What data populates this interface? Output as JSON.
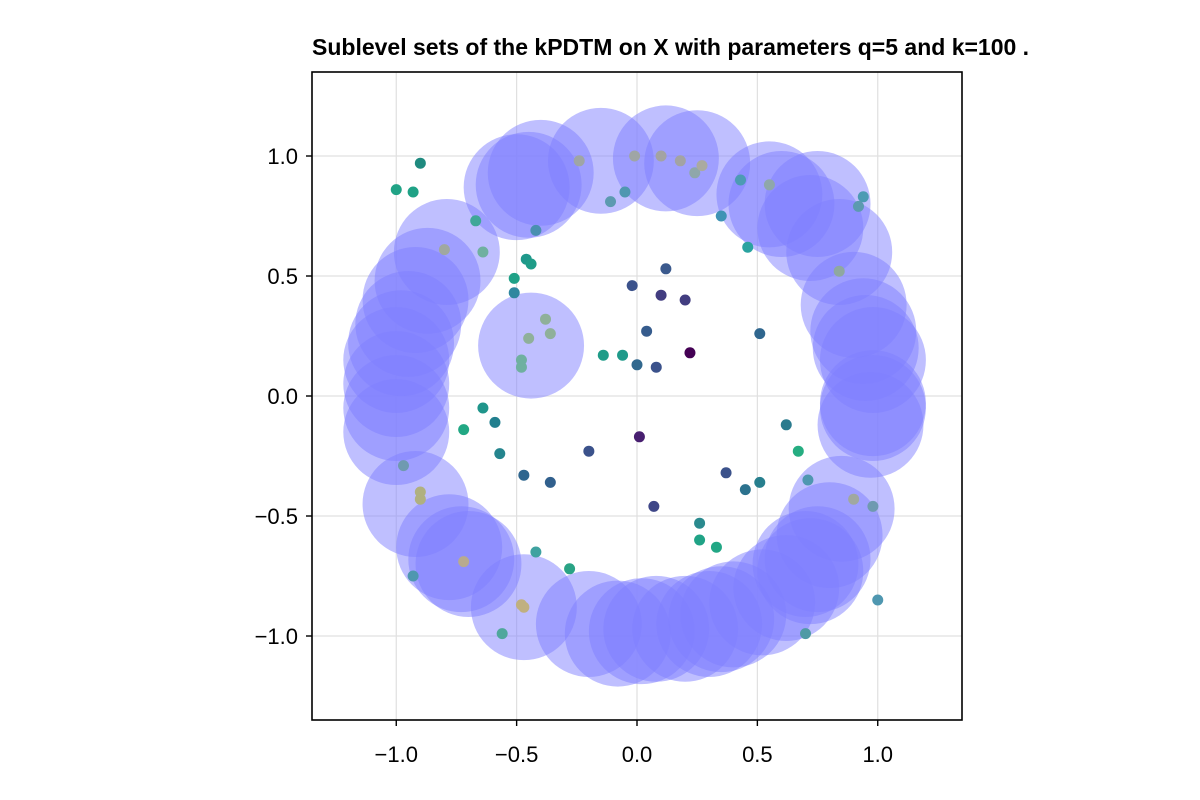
{
  "chart_data": {
    "type": "scatter",
    "title": "Sublevel sets of the kPDTM on X with parameters q=5 and k=100 .",
    "xlabel": "",
    "ylabel": "",
    "xlim": [
      -1.35,
      1.35
    ],
    "ylim": [
      -1.35,
      1.35
    ],
    "xticks": [
      {
        "v": -1.0,
        "label": "−1.0"
      },
      {
        "v": -0.5,
        "label": "−0.5"
      },
      {
        "v": 0.0,
        "label": "0.0"
      },
      {
        "v": 0.5,
        "label": "0.5"
      },
      {
        "v": 1.0,
        "label": "1.0"
      }
    ],
    "yticks": [
      {
        "v": 1.0,
        "label": "1.0"
      },
      {
        "v": 0.5,
        "label": "0.5"
      },
      {
        "v": 0.0,
        "label": "0.0"
      },
      {
        "v": -0.5,
        "label": "−0.5"
      },
      {
        "v": -1.0,
        "label": "−1.0"
      }
    ],
    "grid": true,
    "legend": "none",
    "colors": {
      "ball_fill": "#8080ff",
      "ball_opacity": 0.5
    },
    "ball_radius": 0.22,
    "balls": [
      {
        "x": 0.3,
        "y": -0.95
      },
      {
        "x": -0.2,
        "y": -0.95
      },
      {
        "x": 0.08,
        "y": -0.97
      },
      {
        "x": 0.02,
        "y": -0.98
      },
      {
        "x": 0.75,
        "y": 0.8
      },
      {
        "x": 0.84,
        "y": 0.6
      },
      {
        "x": 0.94,
        "y": 0.27
      },
      {
        "x": -0.45,
        "y": 0.88
      },
      {
        "x": 0.97,
        "y": -0.12
      },
      {
        "x": 0.7,
        "y": -0.7
      },
      {
        "x": -0.7,
        "y": -0.7
      },
      {
        "x": 0.35,
        "y": -0.93
      },
      {
        "x": -0.44,
        "y": 0.21
      },
      {
        "x": -1.0,
        "y": 0.15
      },
      {
        "x": -0.95,
        "y": 0.3
      },
      {
        "x": -0.79,
        "y": 0.6
      },
      {
        "x": -0.15,
        "y": 0.98
      },
      {
        "x": 0.12,
        "y": 0.99
      },
      {
        "x": 0.25,
        "y": 0.97
      },
      {
        "x": -0.4,
        "y": 0.93
      },
      {
        "x": 0.55,
        "y": 0.84
      },
      {
        "x": 0.72,
        "y": 0.7
      },
      {
        "x": 0.98,
        "y": -0.05
      },
      {
        "x": 0.98,
        "y": 0.15
      },
      {
        "x": 0.85,
        "y": -0.47
      },
      {
        "x": 0.8,
        "y": -0.58
      },
      {
        "x": 0.75,
        "y": -0.68
      },
      {
        "x": 0.62,
        "y": -0.8
      },
      {
        "x": 0.52,
        "y": -0.86
      },
      {
        "x": 0.2,
        "y": -0.97
      },
      {
        "x": -0.08,
        "y": -0.99
      },
      {
        "x": -0.47,
        "y": -0.88
      },
      {
        "x": -0.73,
        "y": -0.68
      },
      {
        "x": -0.78,
        "y": -0.63
      },
      {
        "x": -0.92,
        "y": -0.45
      },
      {
        "x": -1.0,
        "y": -0.15
      },
      {
        "x": -1.0,
        "y": -0.05
      },
      {
        "x": -1.0,
        "y": 0.05
      },
      {
        "x": -0.98,
        "y": 0.22
      },
      {
        "x": -0.87,
        "y": 0.48
      },
      {
        "x": -0.5,
        "y": 0.87
      },
      {
        "x": 0.95,
        "y": 0.2
      },
      {
        "x": 0.98,
        "y": -0.03
      },
      {
        "x": 0.72,
        "y": -0.73
      },
      {
        "x": 0.4,
        "y": -0.91
      },
      {
        "x": -0.92,
        "y": 0.4
      },
      {
        "x": 0.9,
        "y": 0.38
      },
      {
        "x": 0.6,
        "y": 0.8
      }
    ],
    "points": [
      {
        "x": -0.9,
        "y": 0.97,
        "c": "#1f8a7f"
      },
      {
        "x": -1.0,
        "y": 0.86,
        "c": "#21a386"
      },
      {
        "x": -0.93,
        "y": 0.85,
        "c": "#1fa286"
      },
      {
        "x": -0.67,
        "y": 0.73,
        "c": "#3fa798"
      },
      {
        "x": -0.64,
        "y": 0.6,
        "c": "#6fb0a0"
      },
      {
        "x": -0.46,
        "y": 0.57,
        "c": "#1f988b"
      },
      {
        "x": -0.44,
        "y": 0.55,
        "c": "#1f9c88"
      },
      {
        "x": -0.51,
        "y": 0.49,
        "c": "#1fa187"
      },
      {
        "x": -0.51,
        "y": 0.43,
        "c": "#2f87a0"
      },
      {
        "x": -0.38,
        "y": 0.32,
        "c": "#8fb09a"
      },
      {
        "x": -0.36,
        "y": 0.26,
        "c": "#8fb09a"
      },
      {
        "x": -0.45,
        "y": 0.24,
        "c": "#8fb09a"
      },
      {
        "x": -0.48,
        "y": 0.15,
        "c": "#6fb0a0"
      },
      {
        "x": -0.48,
        "y": 0.12,
        "c": "#6fb0a0"
      },
      {
        "x": -0.42,
        "y": 0.69,
        "c": "#4a90b0"
      },
      {
        "x": -0.02,
        "y": 0.46,
        "c": "#3b528b"
      },
      {
        "x": 0.12,
        "y": 0.53,
        "c": "#3b5a8d"
      },
      {
        "x": 0.1,
        "y": 0.42,
        "c": "#423d80"
      },
      {
        "x": 0.2,
        "y": 0.4,
        "c": "#423d80"
      },
      {
        "x": 0.04,
        "y": 0.27,
        "c": "#365c8d"
      },
      {
        "x": 0.51,
        "y": 0.26,
        "c": "#2f668e"
      },
      {
        "x": -0.14,
        "y": 0.17,
        "c": "#1f9c88"
      },
      {
        "x": -0.06,
        "y": 0.17,
        "c": "#1f9a8a"
      },
      {
        "x": 0.0,
        "y": 0.13,
        "c": "#31688e"
      },
      {
        "x": 0.08,
        "y": 0.12,
        "c": "#3b528b"
      },
      {
        "x": 0.22,
        "y": 0.18,
        "c": "#440154"
      },
      {
        "x": 0.46,
        "y": 0.62,
        "c": "#2aa3a0"
      },
      {
        "x": 0.35,
        "y": 0.75,
        "c": "#3f93b5"
      },
      {
        "x": 0.43,
        "y": 0.9,
        "c": "#4c9bb4"
      },
      {
        "x": 0.55,
        "y": 0.88,
        "c": "#8fa7aa"
      },
      {
        "x": 0.94,
        "y": 0.83,
        "c": "#4c9bb4"
      },
      {
        "x": 0.92,
        "y": 0.79,
        "c": "#5c9ab0"
      },
      {
        "x": -0.64,
        "y": -0.05,
        "c": "#1f958b"
      },
      {
        "x": -0.72,
        "y": -0.14,
        "c": "#22a884"
      },
      {
        "x": -0.59,
        "y": -0.11,
        "c": "#217f8e"
      },
      {
        "x": -0.57,
        "y": -0.24,
        "c": "#25858e"
      },
      {
        "x": -0.47,
        "y": -0.33,
        "c": "#2f668e"
      },
      {
        "x": -0.36,
        "y": -0.36,
        "c": "#31608d"
      },
      {
        "x": -0.2,
        "y": -0.23,
        "c": "#3b528b"
      },
      {
        "x": 0.01,
        "y": -0.17,
        "c": "#481f70"
      },
      {
        "x": 0.07,
        "y": -0.46,
        "c": "#3f4788"
      },
      {
        "x": 0.37,
        "y": -0.32,
        "c": "#3b528b"
      },
      {
        "x": 0.45,
        "y": -0.39,
        "c": "#2c728e"
      },
      {
        "x": 0.51,
        "y": -0.36,
        "c": "#277f8e"
      },
      {
        "x": 0.62,
        "y": -0.12,
        "c": "#2a7b8e"
      },
      {
        "x": 0.67,
        "y": -0.23,
        "c": "#26ad81"
      },
      {
        "x": 0.26,
        "y": -0.53,
        "c": "#2a8a8e"
      },
      {
        "x": 0.26,
        "y": -0.6,
        "c": "#20a386"
      },
      {
        "x": 0.33,
        "y": -0.63,
        "c": "#22a785"
      },
      {
        "x": -0.42,
        "y": -0.65,
        "c": "#3fa2a0"
      },
      {
        "x": -0.28,
        "y": -0.72,
        "c": "#2aa385"
      },
      {
        "x": -0.56,
        "y": -0.99,
        "c": "#4fa79c"
      },
      {
        "x": -0.93,
        "y": -0.75,
        "c": "#4f97b0"
      },
      {
        "x": -0.97,
        "y": -0.29,
        "c": "#6f9ab0"
      },
      {
        "x": 0.98,
        "y": -0.46,
        "c": "#6f9ab0"
      },
      {
        "x": 0.7,
        "y": -0.99,
        "c": "#4f9aa5"
      },
      {
        "x": 1.0,
        "y": -0.85,
        "c": "#4f97b0"
      },
      {
        "x": 0.71,
        "y": -0.35,
        "c": "#4f97b0"
      },
      {
        "x": -0.05,
        "y": 0.85,
        "c": "#4f97b0"
      },
      {
        "x": -0.11,
        "y": 0.81,
        "c": "#5c9ab0"
      },
      {
        "x": 0.24,
        "y": 0.93,
        "c": "#8fa7aa"
      },
      {
        "x": -0.24,
        "y": 0.98,
        "c": "#9fa5a5"
      },
      {
        "x": -0.01,
        "y": 1.0,
        "c": "#9fa5a5"
      },
      {
        "x": 0.1,
        "y": 1.0,
        "c": "#a3a3a3"
      },
      {
        "x": 0.18,
        "y": 0.98,
        "c": "#a3a3a3"
      },
      {
        "x": 0.27,
        "y": 0.96,
        "c": "#aaaaa0"
      },
      {
        "x": -0.8,
        "y": 0.61,
        "c": "#a0a8a0"
      },
      {
        "x": -0.9,
        "y": -0.4,
        "c": "#b0b080"
      },
      {
        "x": -0.9,
        "y": -0.43,
        "c": "#b0b080"
      },
      {
        "x": -0.48,
        "y": -0.87,
        "c": "#c0b080"
      },
      {
        "x": -0.47,
        "y": -0.88,
        "c": "#c0b080"
      },
      {
        "x": -0.72,
        "y": -0.69,
        "c": "#b8aa90"
      },
      {
        "x": 0.84,
        "y": 0.52,
        "c": "#8fa8a0"
      },
      {
        "x": 0.9,
        "y": -0.43,
        "c": "#a0a8a0"
      }
    ]
  }
}
